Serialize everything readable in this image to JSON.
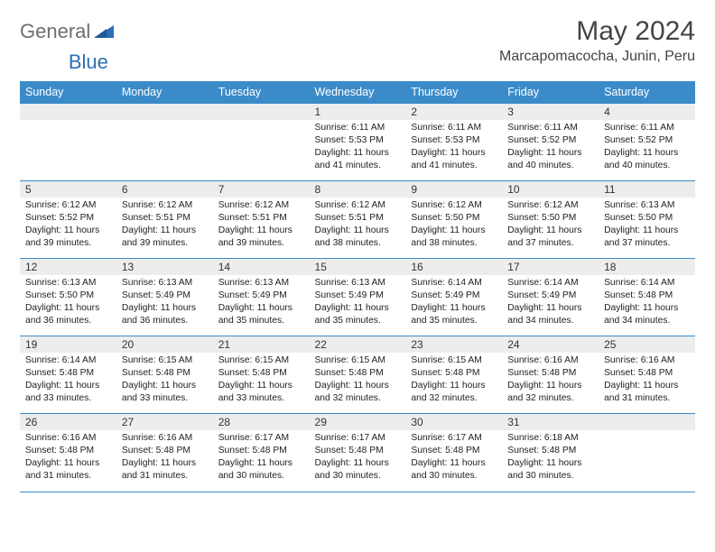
{
  "brand": {
    "text_general": "General",
    "text_blue": "Blue",
    "logo_color": "#2c6fb5"
  },
  "title": "May 2024",
  "location": "Marcapomacocha, Junin, Peru",
  "colors": {
    "header_bg": "#3b8bc9",
    "header_fg": "#ffffff",
    "daynum_bg": "#eceded",
    "rule": "#3b8bc9",
    "text": "#222222"
  },
  "day_headers": [
    "Sunday",
    "Monday",
    "Tuesday",
    "Wednesday",
    "Thursday",
    "Friday",
    "Saturday"
  ],
  "weeks": [
    [
      {
        "num": "",
        "sunrise": "",
        "sunset": "",
        "daylight": ""
      },
      {
        "num": "",
        "sunrise": "",
        "sunset": "",
        "daylight": ""
      },
      {
        "num": "",
        "sunrise": "",
        "sunset": "",
        "daylight": ""
      },
      {
        "num": "1",
        "sunrise": "Sunrise: 6:11 AM",
        "sunset": "Sunset: 5:53 PM",
        "daylight": "Daylight: 11 hours and 41 minutes."
      },
      {
        "num": "2",
        "sunrise": "Sunrise: 6:11 AM",
        "sunset": "Sunset: 5:53 PM",
        "daylight": "Daylight: 11 hours and 41 minutes."
      },
      {
        "num": "3",
        "sunrise": "Sunrise: 6:11 AM",
        "sunset": "Sunset: 5:52 PM",
        "daylight": "Daylight: 11 hours and 40 minutes."
      },
      {
        "num": "4",
        "sunrise": "Sunrise: 6:11 AM",
        "sunset": "Sunset: 5:52 PM",
        "daylight": "Daylight: 11 hours and 40 minutes."
      }
    ],
    [
      {
        "num": "5",
        "sunrise": "Sunrise: 6:12 AM",
        "sunset": "Sunset: 5:52 PM",
        "daylight": "Daylight: 11 hours and 39 minutes."
      },
      {
        "num": "6",
        "sunrise": "Sunrise: 6:12 AM",
        "sunset": "Sunset: 5:51 PM",
        "daylight": "Daylight: 11 hours and 39 minutes."
      },
      {
        "num": "7",
        "sunrise": "Sunrise: 6:12 AM",
        "sunset": "Sunset: 5:51 PM",
        "daylight": "Daylight: 11 hours and 39 minutes."
      },
      {
        "num": "8",
        "sunrise": "Sunrise: 6:12 AM",
        "sunset": "Sunset: 5:51 PM",
        "daylight": "Daylight: 11 hours and 38 minutes."
      },
      {
        "num": "9",
        "sunrise": "Sunrise: 6:12 AM",
        "sunset": "Sunset: 5:50 PM",
        "daylight": "Daylight: 11 hours and 38 minutes."
      },
      {
        "num": "10",
        "sunrise": "Sunrise: 6:12 AM",
        "sunset": "Sunset: 5:50 PM",
        "daylight": "Daylight: 11 hours and 37 minutes."
      },
      {
        "num": "11",
        "sunrise": "Sunrise: 6:13 AM",
        "sunset": "Sunset: 5:50 PM",
        "daylight": "Daylight: 11 hours and 37 minutes."
      }
    ],
    [
      {
        "num": "12",
        "sunrise": "Sunrise: 6:13 AM",
        "sunset": "Sunset: 5:50 PM",
        "daylight": "Daylight: 11 hours and 36 minutes."
      },
      {
        "num": "13",
        "sunrise": "Sunrise: 6:13 AM",
        "sunset": "Sunset: 5:49 PM",
        "daylight": "Daylight: 11 hours and 36 minutes."
      },
      {
        "num": "14",
        "sunrise": "Sunrise: 6:13 AM",
        "sunset": "Sunset: 5:49 PM",
        "daylight": "Daylight: 11 hours and 35 minutes."
      },
      {
        "num": "15",
        "sunrise": "Sunrise: 6:13 AM",
        "sunset": "Sunset: 5:49 PM",
        "daylight": "Daylight: 11 hours and 35 minutes."
      },
      {
        "num": "16",
        "sunrise": "Sunrise: 6:14 AM",
        "sunset": "Sunset: 5:49 PM",
        "daylight": "Daylight: 11 hours and 35 minutes."
      },
      {
        "num": "17",
        "sunrise": "Sunrise: 6:14 AM",
        "sunset": "Sunset: 5:49 PM",
        "daylight": "Daylight: 11 hours and 34 minutes."
      },
      {
        "num": "18",
        "sunrise": "Sunrise: 6:14 AM",
        "sunset": "Sunset: 5:48 PM",
        "daylight": "Daylight: 11 hours and 34 minutes."
      }
    ],
    [
      {
        "num": "19",
        "sunrise": "Sunrise: 6:14 AM",
        "sunset": "Sunset: 5:48 PM",
        "daylight": "Daylight: 11 hours and 33 minutes."
      },
      {
        "num": "20",
        "sunrise": "Sunrise: 6:15 AM",
        "sunset": "Sunset: 5:48 PM",
        "daylight": "Daylight: 11 hours and 33 minutes."
      },
      {
        "num": "21",
        "sunrise": "Sunrise: 6:15 AM",
        "sunset": "Sunset: 5:48 PM",
        "daylight": "Daylight: 11 hours and 33 minutes."
      },
      {
        "num": "22",
        "sunrise": "Sunrise: 6:15 AM",
        "sunset": "Sunset: 5:48 PM",
        "daylight": "Daylight: 11 hours and 32 minutes."
      },
      {
        "num": "23",
        "sunrise": "Sunrise: 6:15 AM",
        "sunset": "Sunset: 5:48 PM",
        "daylight": "Daylight: 11 hours and 32 minutes."
      },
      {
        "num": "24",
        "sunrise": "Sunrise: 6:16 AM",
        "sunset": "Sunset: 5:48 PM",
        "daylight": "Daylight: 11 hours and 32 minutes."
      },
      {
        "num": "25",
        "sunrise": "Sunrise: 6:16 AM",
        "sunset": "Sunset: 5:48 PM",
        "daylight": "Daylight: 11 hours and 31 minutes."
      }
    ],
    [
      {
        "num": "26",
        "sunrise": "Sunrise: 6:16 AM",
        "sunset": "Sunset: 5:48 PM",
        "daylight": "Daylight: 11 hours and 31 minutes."
      },
      {
        "num": "27",
        "sunrise": "Sunrise: 6:16 AM",
        "sunset": "Sunset: 5:48 PM",
        "daylight": "Daylight: 11 hours and 31 minutes."
      },
      {
        "num": "28",
        "sunrise": "Sunrise: 6:17 AM",
        "sunset": "Sunset: 5:48 PM",
        "daylight": "Daylight: 11 hours and 30 minutes."
      },
      {
        "num": "29",
        "sunrise": "Sunrise: 6:17 AM",
        "sunset": "Sunset: 5:48 PM",
        "daylight": "Daylight: 11 hours and 30 minutes."
      },
      {
        "num": "30",
        "sunrise": "Sunrise: 6:17 AM",
        "sunset": "Sunset: 5:48 PM",
        "daylight": "Daylight: 11 hours and 30 minutes."
      },
      {
        "num": "31",
        "sunrise": "Sunrise: 6:18 AM",
        "sunset": "Sunset: 5:48 PM",
        "daylight": "Daylight: 11 hours and 30 minutes."
      },
      {
        "num": "",
        "sunrise": "",
        "sunset": "",
        "daylight": ""
      }
    ]
  ]
}
